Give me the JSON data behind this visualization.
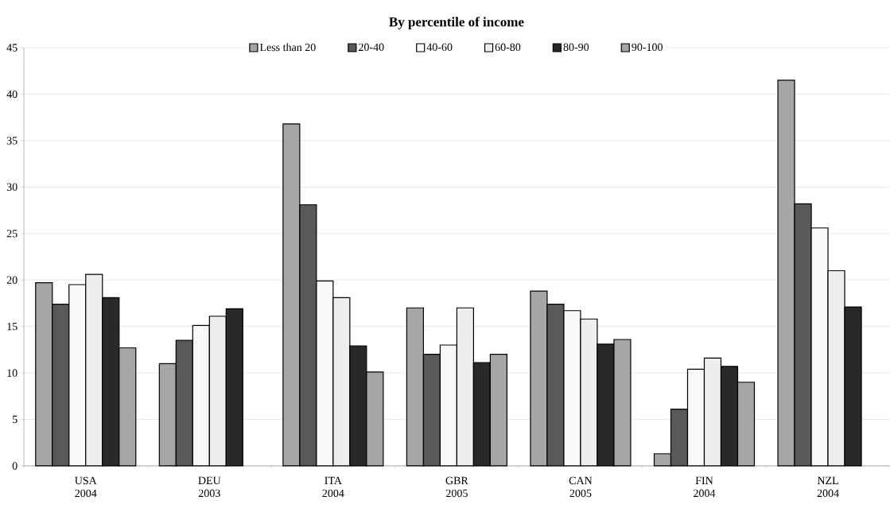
{
  "chart_data": {
    "type": "bar",
    "title": "By percentile of income",
    "categories": [
      "USA 2004",
      "DEU 2003",
      "ITA 2004",
      "GBR 2005",
      "CAN 2005",
      "FIN 2004",
      "NZL 2004"
    ],
    "series": [
      {
        "name": "Less than 20",
        "color": "#a6a6a6",
        "values": [
          19.7,
          11.0,
          36.8,
          17.0,
          18.8,
          1.3,
          41.5
        ]
      },
      {
        "name": "20-40",
        "color": "#595959",
        "values": [
          17.4,
          13.5,
          28.1,
          12.0,
          17.4,
          6.1,
          28.2
        ]
      },
      {
        "name": "40-60",
        "color": "#f8f8f8",
        "values": [
          19.5,
          15.1,
          19.9,
          13.0,
          16.7,
          10.4,
          25.6
        ]
      },
      {
        "name": "60-80",
        "color": "#eeeeee",
        "values": [
          20.6,
          16.1,
          18.1,
          17.0,
          15.8,
          11.6,
          21.0
        ]
      },
      {
        "name": "80-90",
        "color": "#292929",
        "values": [
          18.1,
          16.9,
          12.9,
          11.1,
          13.1,
          10.7,
          17.1
        ]
      },
      {
        "name": "90-100",
        "color": "#a6a6a6",
        "values": [
          12.7,
          null,
          10.1,
          12.0,
          13.6,
          9.0,
          null
        ]
      }
    ],
    "ylim": [
      0,
      45
    ],
    "yticks": [
      0,
      5,
      10,
      15,
      20,
      25,
      30,
      35,
      40,
      45
    ],
    "grid": "y",
    "legend": "top"
  }
}
